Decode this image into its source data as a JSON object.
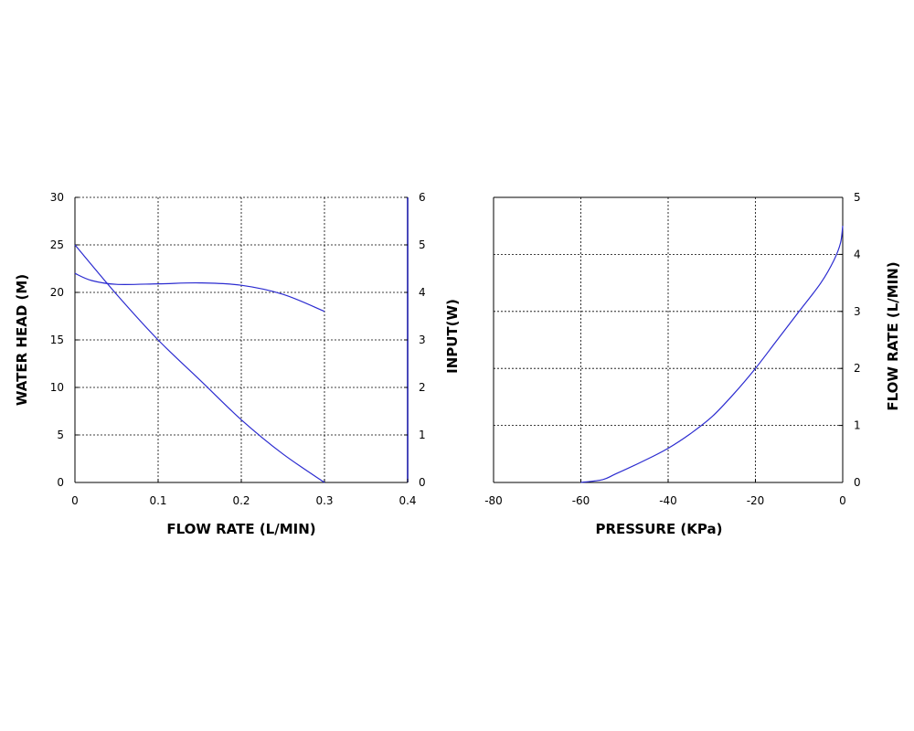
{
  "chart_data": [
    {
      "type": "line",
      "xlabel": "FLOW RATE (L/MIN)",
      "ylabel": "WATER HEAD (M)",
      "y2label": "INPUT(W)",
      "xlim": [
        0,
        0.4
      ],
      "ylim": [
        0,
        30
      ],
      "y2lim": [
        0,
        6
      ],
      "xticks": [
        "0",
        "0.1",
        "0.2",
        "0.3",
        "0.4"
      ],
      "yticks": [
        "0",
        "5",
        "10",
        "15",
        "20",
        "25",
        "30"
      ],
      "y2ticks": [
        "0",
        "1",
        "2",
        "3",
        "4",
        "5",
        "6"
      ],
      "grid": true,
      "colors": {
        "series": "#2b2bd0",
        "right_axis": "#1a1aa8"
      },
      "series": [
        {
          "axis": "left",
          "x": [
            0,
            0.05,
            0.1,
            0.15,
            0.2,
            0.25,
            0.3
          ],
          "values": [
            25,
            19.8,
            15,
            10.8,
            6.6,
            3.0,
            0
          ]
        },
        {
          "axis": "right",
          "x": [
            0,
            0.02,
            0.05,
            0.1,
            0.15,
            0.2,
            0.25,
            0.3
          ],
          "values": [
            4.4,
            4.25,
            4.17,
            4.18,
            4.2,
            4.15,
            3.96,
            3.6
          ]
        }
      ]
    },
    {
      "type": "line",
      "xlabel": "PRESSURE (KPa)",
      "y2label": "FLOW RATE (L/MIN)",
      "xlim": [
        -80,
        0
      ],
      "y2lim": [
        0,
        5
      ],
      "xticks": [
        "-80",
        "-60",
        "-40",
        "-20",
        "0"
      ],
      "y2ticks": [
        "0",
        "1",
        "2",
        "3",
        "4",
        "5"
      ],
      "grid": true,
      "colors": {
        "series": "#2b2bd0"
      },
      "series": [
        {
          "axis": "right",
          "x": [
            -60,
            -55,
            -52,
            -45,
            -40,
            -35,
            -30,
            -25,
            -20,
            -15,
            -10,
            -5,
            -2,
            -0.5,
            0
          ],
          "values": [
            0,
            0.05,
            0.15,
            0.4,
            0.6,
            0.85,
            1.15,
            1.55,
            2.0,
            2.5,
            3.0,
            3.5,
            3.9,
            4.2,
            4.5
          ]
        }
      ]
    }
  ]
}
